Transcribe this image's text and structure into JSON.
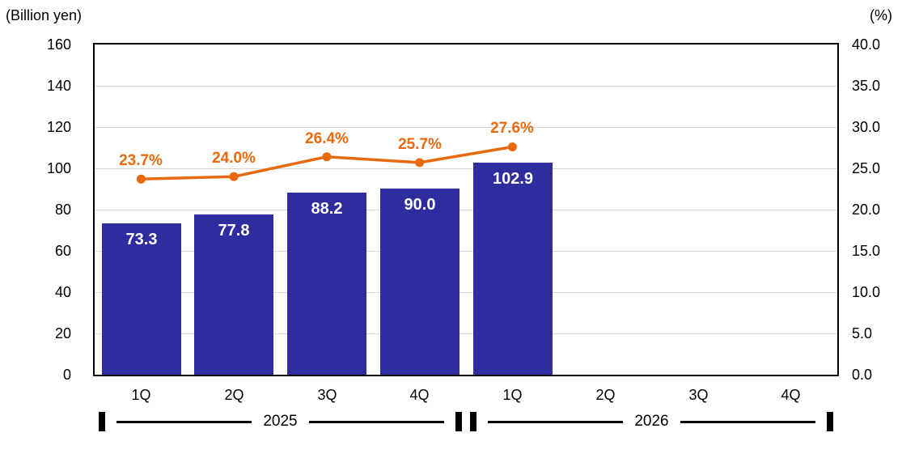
{
  "chart_data": {
    "type": "bar",
    "combo": "bar+line",
    "categories": [
      "1Q",
      "2Q",
      "3Q",
      "4Q",
      "1Q",
      "2Q",
      "3Q",
      "4Q"
    ],
    "year_groups": [
      {
        "label": "2025",
        "start": 0,
        "end": 3
      },
      {
        "label": "2026",
        "start": 4,
        "end": 7
      }
    ],
    "left_axis": {
      "title": "(Billion yen)",
      "min": 0,
      "max": 160,
      "step": 20,
      "ticks": [
        "160",
        "140",
        "120",
        "100",
        "80",
        "60",
        "40",
        "20",
        "0"
      ]
    },
    "right_axis": {
      "title": "(%)",
      "min": 0,
      "max": 40,
      "step": 5,
      "ticks": [
        "40.0",
        "35.0",
        "30.0",
        "25.0",
        "20.0",
        "15.0",
        "10.0",
        "5.0",
        "0.0"
      ]
    },
    "series": [
      {
        "name": "quarterly-amount-bars",
        "type": "bar",
        "axis": "left",
        "color": "#2E2C9E",
        "label_color": "#FFFFFF",
        "values": [
          73.3,
          77.8,
          88.2,
          90.0,
          102.9,
          null,
          null,
          null
        ],
        "labels": [
          "73.3",
          "77.8",
          "88.2",
          "90.0",
          "102.9",
          null,
          null,
          null
        ]
      },
      {
        "name": "ratio-line",
        "type": "line",
        "axis": "right",
        "color": "#E8690E",
        "values": [
          23.7,
          24.0,
          26.4,
          25.7,
          27.6,
          null,
          null,
          null
        ],
        "labels": [
          "23.7%",
          "24.0%",
          "26.4%",
          "25.7%",
          "27.6%",
          null,
          null,
          null
        ]
      }
    ],
    "layout": {
      "grid_color": "#D9D9D9",
      "axis_color": "#000000",
      "legend": "none"
    }
  }
}
